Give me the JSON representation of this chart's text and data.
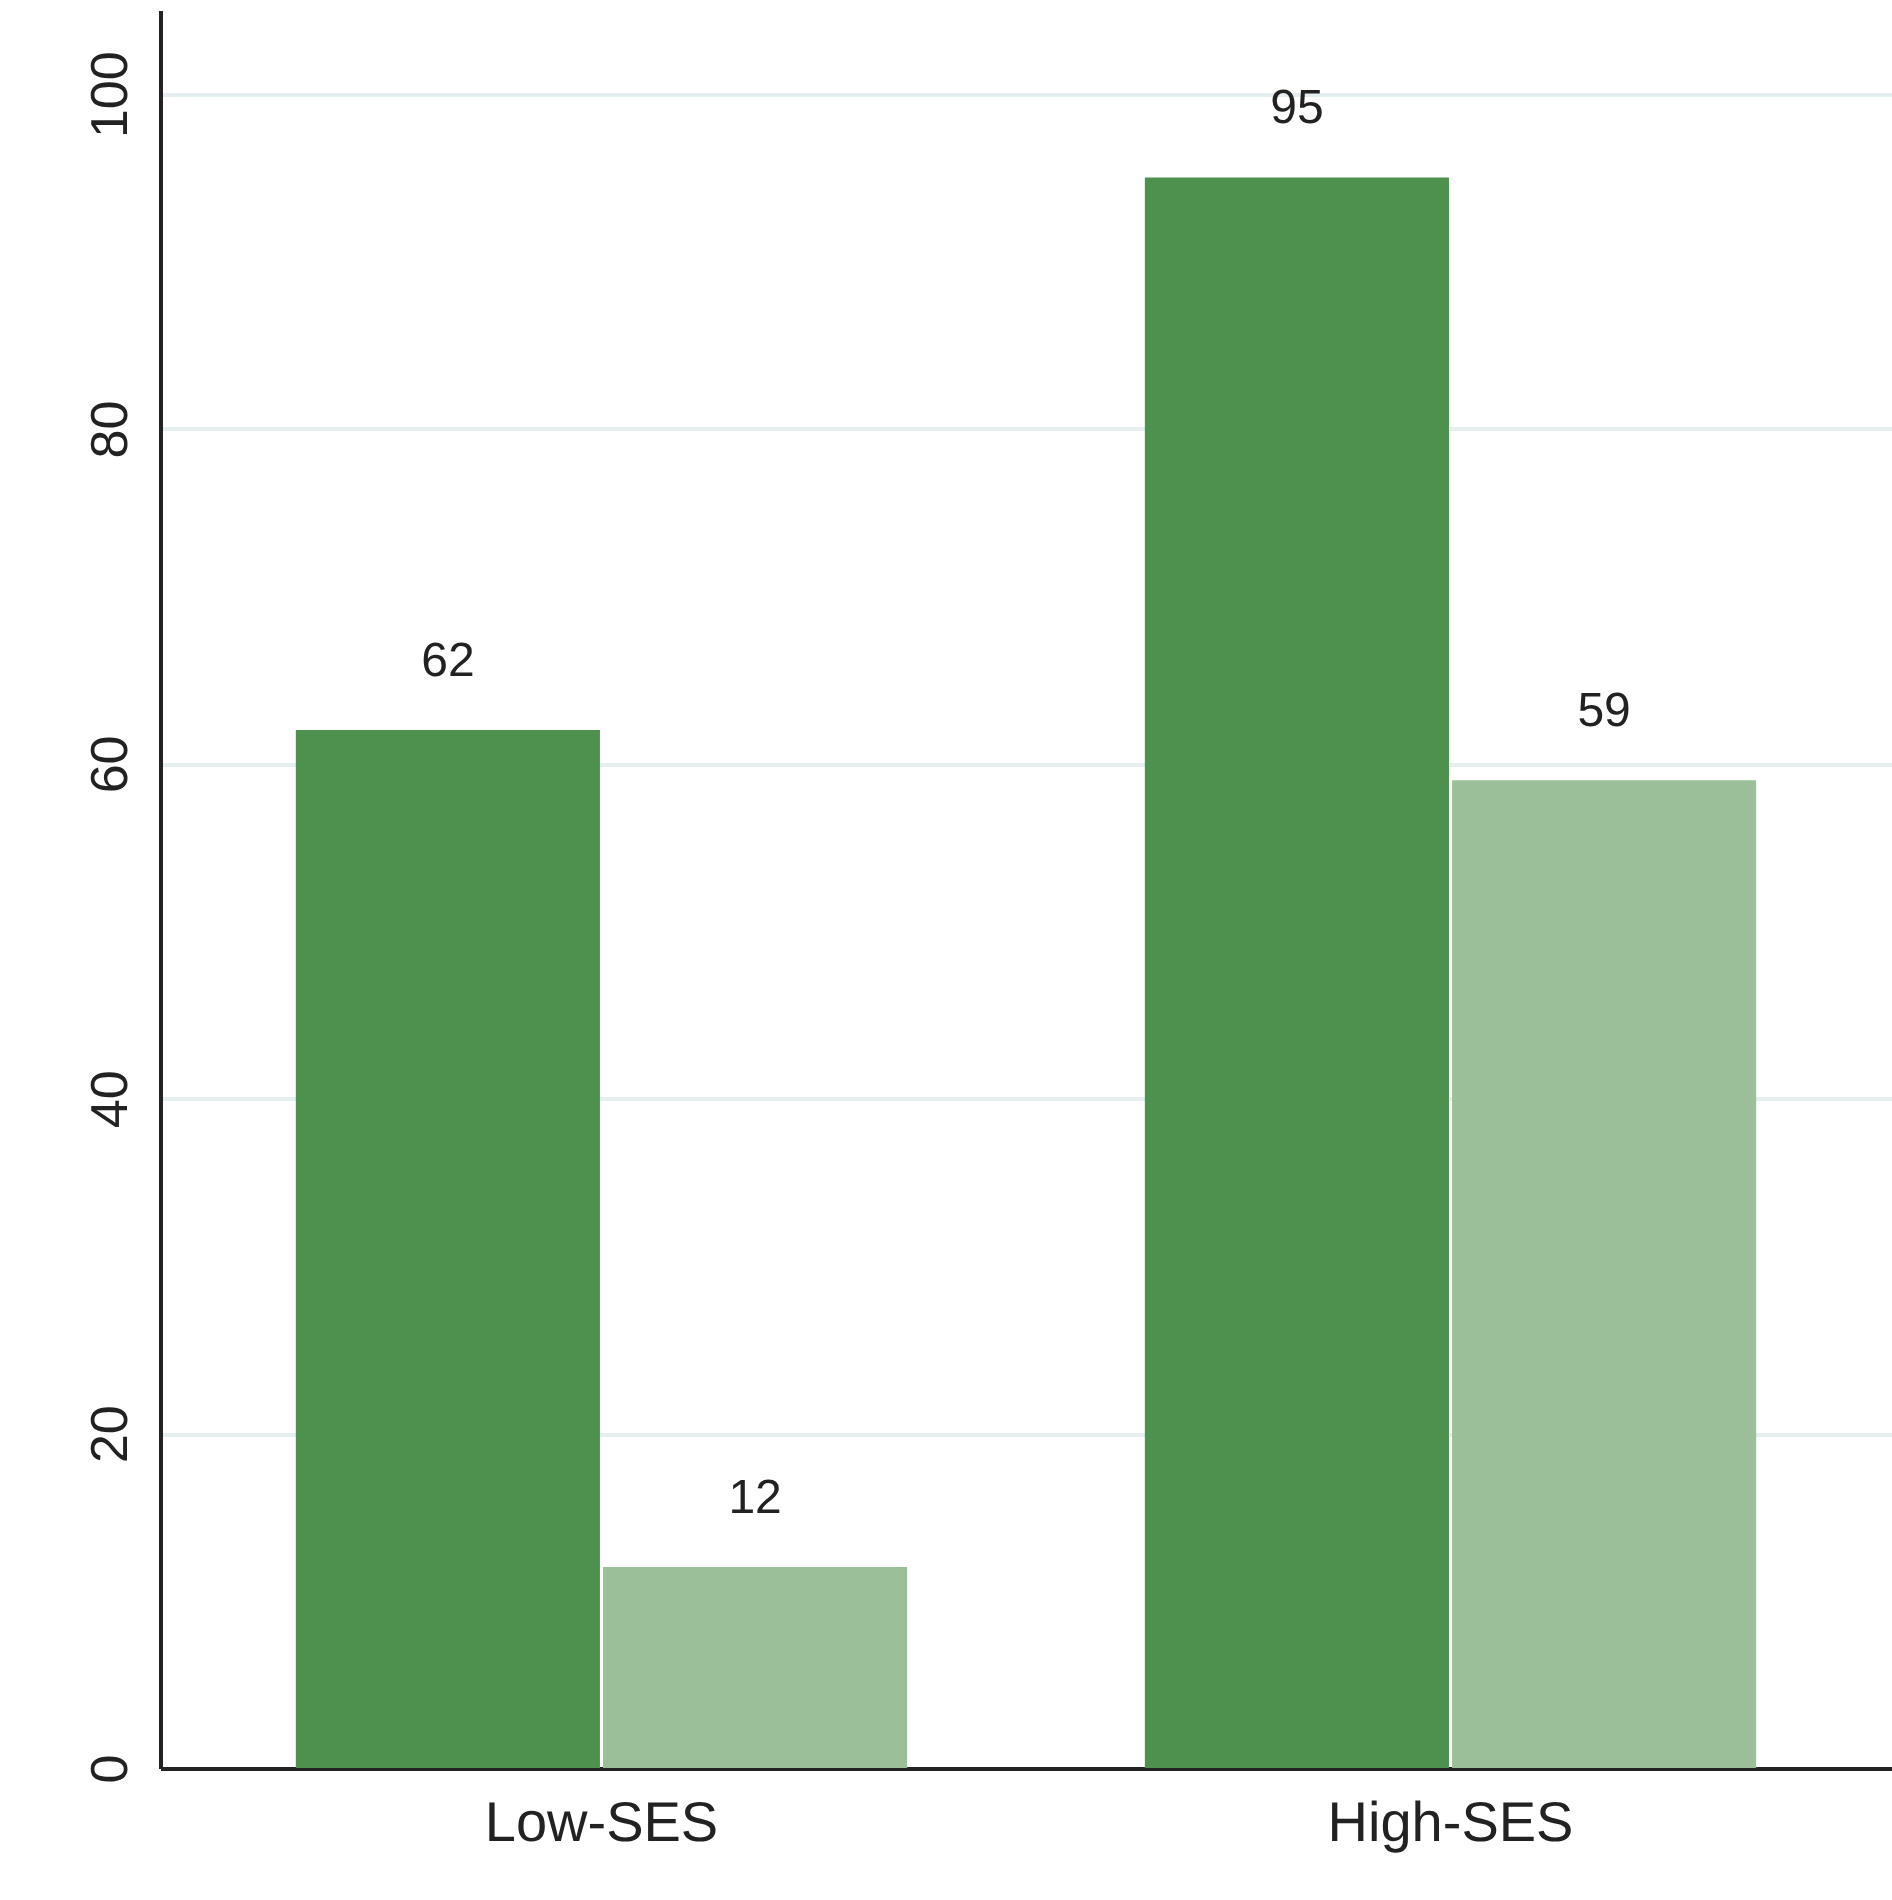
{
  "chart_data": {
    "type": "bar",
    "categories": [
      "Low-SES",
      "High-SES"
    ],
    "series": [
      {
        "color": "#4e914e",
        "values": [
          62,
          95
        ]
      },
      {
        "color": "#9bbf98",
        "values": [
          12,
          59
        ]
      }
    ],
    "ylim": [
      0,
      105
    ],
    "yticks": [
      0,
      20,
      40,
      60,
      80,
      100
    ],
    "grid": "y",
    "data_labels": true
  }
}
